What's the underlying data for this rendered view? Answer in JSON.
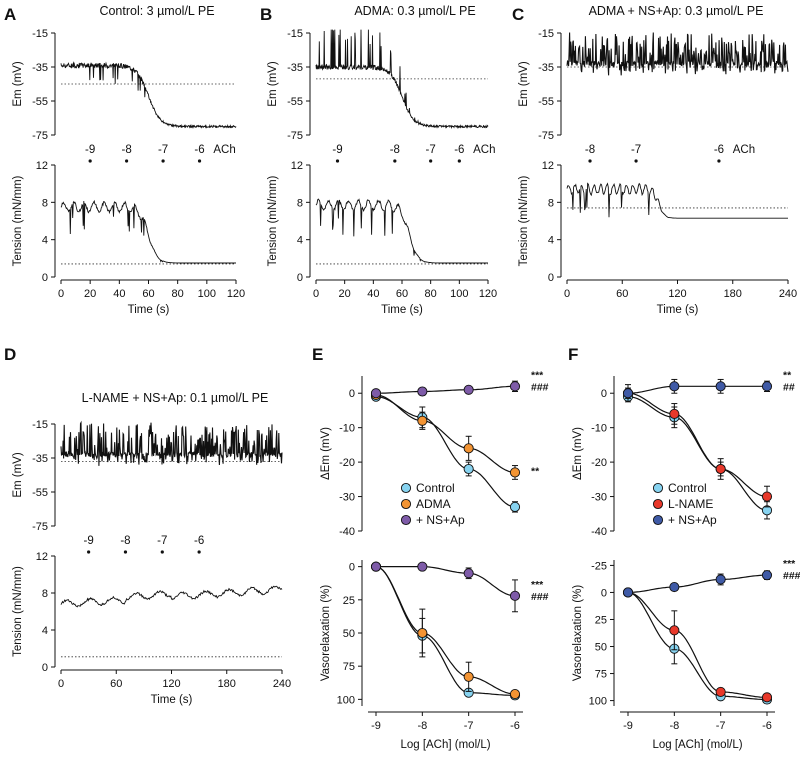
{
  "colors": {
    "control": "#87d3f0",
    "adma": "#f39433",
    "lname": "#e8382a",
    "nsap_e": "#7e5ba8",
    "nsap_f": "#3f5aa6",
    "trace": "#111111"
  },
  "chart_data": [
    {
      "type": "line",
      "panel": "A",
      "title": "Control: 3 µmol/L PE",
      "xlabel": "Time (s)",
      "em": {
        "ylabel": "Em (mV)",
        "ylim": [
          -75,
          -15
        ],
        "yticks": [
          -15,
          -35,
          -55,
          -75
        ],
        "baseline": -45,
        "early_level": -34,
        "late_level": -70,
        "drop_time": 60
      },
      "tension": {
        "ylabel": "Tension (mN/mm)",
        "ylim": [
          0,
          12
        ],
        "yticks": [
          0,
          4,
          8,
          12
        ],
        "baseline": 1.4,
        "early_level": 7.5,
        "late_level": 1.5,
        "drop_time": 60
      },
      "xlim": [
        0,
        120
      ],
      "xticks": [
        0,
        20,
        40,
        60,
        80,
        100,
        120
      ],
      "dose_labels": [
        "-9",
        "-8",
        "-7",
        "-6",
        "ACh"
      ],
      "dose_times": [
        20,
        45,
        70,
        95
      ]
    },
    {
      "type": "line",
      "panel": "B",
      "title": "ADMA: 0.3 µmol/L PE",
      "xlabel": "Time (s)",
      "em": {
        "ylabel": "Em (mV)",
        "ylim": [
          -75,
          -15
        ],
        "yticks": [
          -15,
          -35,
          -55,
          -75
        ],
        "baseline": -42,
        "early_level": -35,
        "late_level": -70,
        "drop_time": 60
      },
      "tension": {
        "ylabel": "Tension (mN/mm)",
        "ylim": [
          0,
          12
        ],
        "yticks": [
          0,
          4,
          8,
          12
        ],
        "baseline": 1.4,
        "early_level": 7.7,
        "late_level": 1.5,
        "drop_time": 65
      },
      "xlim": [
        0,
        120
      ],
      "xticks": [
        0,
        20,
        40,
        60,
        80,
        100,
        120
      ],
      "dose_labels": [
        "-9",
        "-8",
        "-7",
        "-6",
        "ACh"
      ],
      "dose_times": [
        15,
        55,
        80,
        100
      ]
    },
    {
      "type": "line",
      "panel": "C",
      "title": "ADMA + NS+Ap: 0.3 µmol/L PE",
      "xlabel": "Time (s)",
      "em": {
        "ylabel": "Em (mV)",
        "ylim": [
          -75,
          -15
        ],
        "yticks": [
          -15,
          -35,
          -55,
          -75
        ],
        "baseline": -35,
        "early_level": -33,
        "late_level": -33,
        "drop_time": null
      },
      "tension": {
        "ylabel": "Tension (mN/mm)",
        "ylim": [
          0,
          12
        ],
        "yticks": [
          0,
          4,
          8,
          12
        ],
        "baseline": 7.4,
        "early_level": 9.4,
        "late_level": 6.3,
        "drop_time": 100
      },
      "xlim": [
        0,
        240
      ],
      "xticks": [
        0,
        60,
        120,
        180,
        240
      ],
      "dose_labels": [
        "-8",
        "-7",
        "-6",
        "ACh"
      ],
      "dose_times": [
        25,
        75,
        165
      ]
    },
    {
      "type": "line",
      "panel": "D",
      "title": "L-NAME + NS+Ap: 0.1 µmol/L PE",
      "xlabel": "Time (s)",
      "em": {
        "ylabel": "Em (mV)",
        "ylim": [
          -75,
          -15
        ],
        "yticks": [
          -15,
          -35,
          -55,
          -75
        ],
        "baseline": -37,
        "early_level": -33,
        "late_level": -31,
        "drop_time": null
      },
      "tension": {
        "ylabel": "Tension (mN/mm)",
        "ylim": [
          0,
          12
        ],
        "yticks": [
          0,
          4,
          8,
          12
        ],
        "baseline": 1.1,
        "early_level": 6.8,
        "late_level": 8.4,
        "drop_time": null
      },
      "xlim": [
        0,
        240
      ],
      "xticks": [
        0,
        60,
        120,
        180,
        240
      ],
      "dose_labels": [
        "-9",
        "-8",
        "-7",
        "-6"
      ],
      "dose_times": [
        30,
        70,
        110,
        150
      ]
    },
    {
      "type": "scatter",
      "panel": "E",
      "xlabel": "Log [ACh] (mol/L)",
      "x": [
        -9,
        -8,
        -7,
        -6
      ],
      "xticks": [
        -9,
        -8,
        -7,
        -6
      ],
      "em": {
        "ylabel": "ΔEm (mV)",
        "ylim": [
          -40,
          5
        ],
        "yticks": [
          0,
          -10,
          -20,
          -30,
          -40
        ],
        "series": [
          {
            "name": "Control",
            "color_key": "control",
            "values": [
              -1,
              -7,
              -22,
              -33
            ],
            "errors": [
              1,
              3,
              2,
              1.5
            ],
            "sig": ""
          },
          {
            "name": "ADMA",
            "color_key": "adma",
            "values": [
              -0.5,
              -8,
              -16,
              -23
            ],
            "errors": [
              1,
              2.5,
              3.5,
              2
            ],
            "sig": "**"
          },
          {
            "name": "+ NS+Ap",
            "color_key": "nsap_e",
            "values": [
              0,
              0.5,
              1,
              2
            ],
            "errors": [
              0.5,
              0.5,
              0.8,
              1.5
            ],
            "sig": "***\n###"
          }
        ]
      },
      "relax": {
        "ylabel": "Vasorelaxation (%)",
        "ylim": [
          105,
          -5
        ],
        "yticks": [
          0,
          25,
          50,
          75,
          100
        ],
        "series": [
          {
            "name": "Control",
            "color_key": "control",
            "values": [
              0,
              52,
              95,
              97
            ],
            "errors": [
              1,
              13,
              2,
              1.5
            ],
            "sig": ""
          },
          {
            "name": "ADMA",
            "color_key": "adma",
            "values": [
              0,
              50,
              83,
              96
            ],
            "errors": [
              1,
              18,
              11,
              2
            ],
            "sig": ""
          },
          {
            "name": "+ NS+Ap",
            "color_key": "nsap_e",
            "values": [
              0,
              0,
              5,
              22
            ],
            "errors": [
              0.5,
              0.5,
              4,
              12
            ],
            "sig": "***\n###"
          }
        ]
      }
    },
    {
      "type": "scatter",
      "panel": "F",
      "xlabel": "Log [ACh] (mol/L)",
      "x": [
        -9,
        -8,
        -7,
        -6
      ],
      "xticks": [
        -9,
        -8,
        -7,
        -6
      ],
      "em": {
        "ylabel": "ΔEm (mV)",
        "ylim": [
          -40,
          5
        ],
        "yticks": [
          0,
          -10,
          -20,
          -30,
          -40
        ],
        "series": [
          {
            "name": "Control",
            "color_key": "control",
            "values": [
              -1,
              -7,
              -22,
              -34
            ],
            "errors": [
              1,
              3,
              3,
              2.5
            ],
            "sig": ""
          },
          {
            "name": "L-NAME",
            "color_key": "lname",
            "values": [
              0,
              -6,
              -22,
              -30
            ],
            "errors": [
              2.5,
              3,
              2,
              3
            ],
            "sig": ""
          },
          {
            "name": "+ NS+Ap",
            "color_key": "nsap_f",
            "values": [
              0,
              2,
              2,
              2
            ],
            "errors": [
              1.5,
              2,
              2,
              1.5
            ],
            "sig": "**\n##"
          }
        ]
      },
      "relax": {
        "ylabel": "Vasorelaxation (%)",
        "ylim": [
          105,
          -30
        ],
        "yticks": [
          -25,
          0,
          25,
          50,
          75,
          100
        ],
        "series": [
          {
            "name": "Control",
            "color_key": "control",
            "values": [
              0,
              52,
              96,
              99
            ],
            "errors": [
              1,
              14,
              1.5,
              1
            ],
            "sig": ""
          },
          {
            "name": "L-NAME",
            "color_key": "lname",
            "values": [
              0,
              35,
              92,
              97
            ],
            "errors": [
              1,
              18,
              3,
              2
            ],
            "sig": ""
          },
          {
            "name": "+ NS+Ap",
            "color_key": "nsap_f",
            "values": [
              0,
              -5,
              -12,
              -16
            ],
            "errors": [
              0.5,
              3,
              5,
              4
            ],
            "sig": "***\n###"
          }
        ]
      }
    }
  ]
}
